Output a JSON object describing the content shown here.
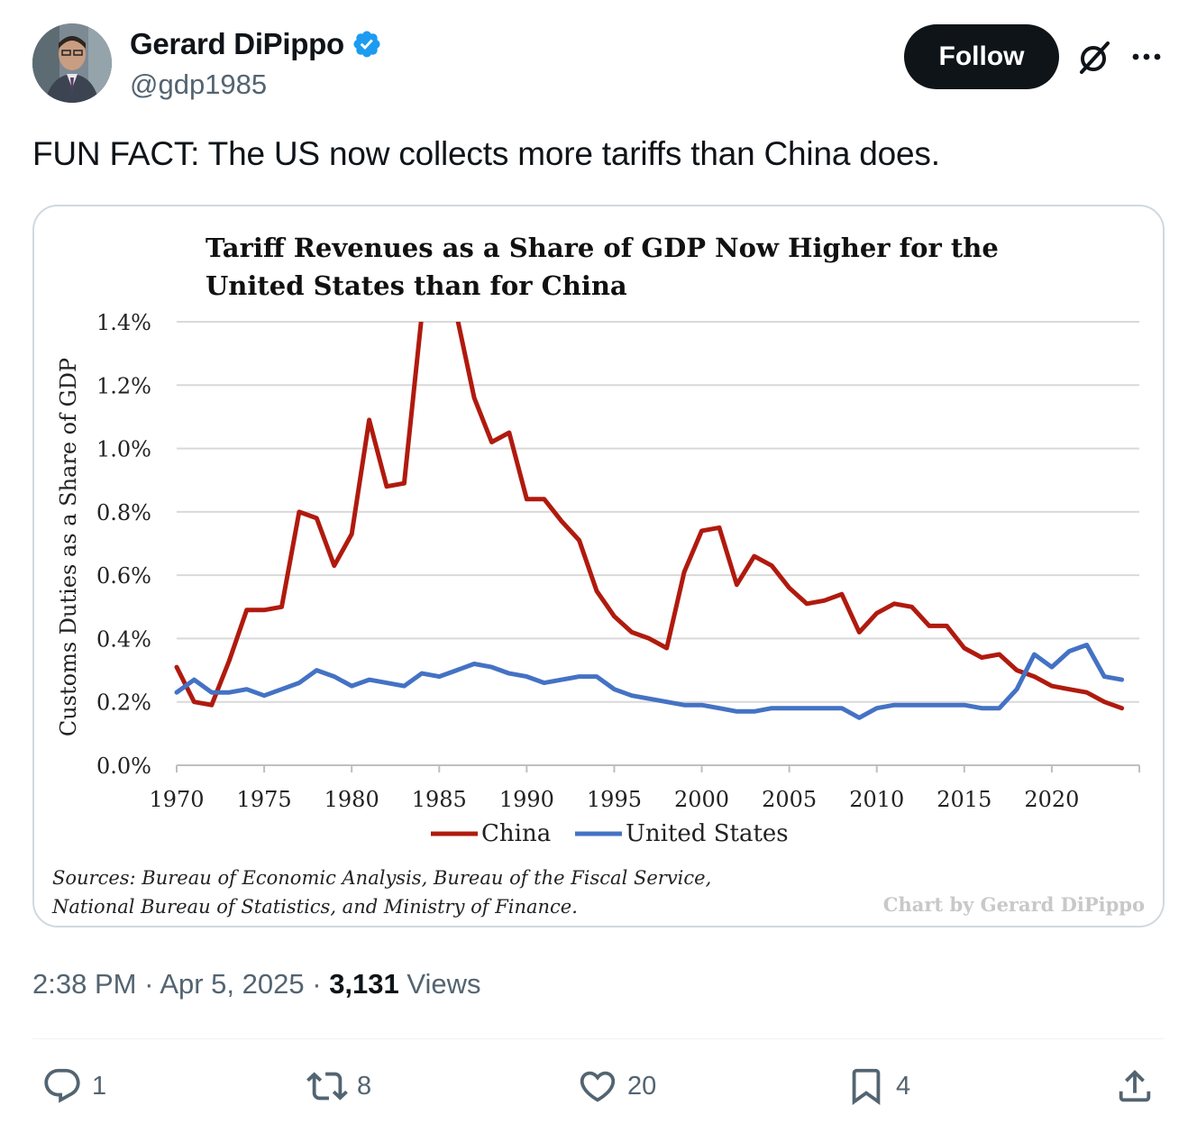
{
  "author": {
    "display_name": "Gerard DiPippo",
    "handle": "@gdp1985",
    "verified_icon": "verified-badge-icon"
  },
  "header": {
    "follow_label": "Follow",
    "grok_icon": "grok-icon",
    "more_icon": "more-options-icon"
  },
  "tweet": {
    "text": "FUN FACT: The US now collects more tariffs than China does."
  },
  "chart_data": {
    "type": "line",
    "title_line1": "Tariff Revenues as a Share of GDP Now Higher for the",
    "title_line2": "United States than for China",
    "ylabel": "Customs Duties as a Share of GDP",
    "xlabel": "",
    "ylim": [
      0,
      1.4
    ],
    "xlim": [
      1970,
      2025
    ],
    "yticks": [
      "0.0%",
      "0.2%",
      "0.4%",
      "0.6%",
      "0.8%",
      "1.0%",
      "1.2%",
      "1.4%"
    ],
    "xticks": [
      "1970",
      "1975",
      "1980",
      "1985",
      "1990",
      "1995",
      "2000",
      "2005",
      "2010",
      "2015",
      "2020"
    ],
    "grid": true,
    "legend_position": "bottom",
    "x": [
      1970,
      1971,
      1972,
      1973,
      1974,
      1975,
      1976,
      1977,
      1978,
      1979,
      1980,
      1981,
      1982,
      1983,
      1984,
      1985,
      1986,
      1987,
      1988,
      1989,
      1990,
      1991,
      1992,
      1993,
      1994,
      1995,
      1996,
      1997,
      1998,
      1999,
      2000,
      2001,
      2002,
      2003,
      2004,
      2005,
      2006,
      2007,
      2008,
      2009,
      2010,
      2011,
      2012,
      2013,
      2014,
      2015,
      2016,
      2017,
      2018,
      2019,
      2020,
      2021,
      2022,
      2023,
      2024
    ],
    "series": [
      {
        "name": "China",
        "color": "#b01a0e",
        "values": [
          0.31,
          0.2,
          0.19,
          0.33,
          0.49,
          0.49,
          0.5,
          0.8,
          0.78,
          0.63,
          0.73,
          1.09,
          0.88,
          0.89,
          1.42,
          1.6,
          1.42,
          1.16,
          1.02,
          1.05,
          0.84,
          0.84,
          0.77,
          0.71,
          0.55,
          0.47,
          0.42,
          0.4,
          0.37,
          0.61,
          0.74,
          0.75,
          0.57,
          0.66,
          0.63,
          0.56,
          0.51,
          0.52,
          0.54,
          0.42,
          0.48,
          0.51,
          0.5,
          0.44,
          0.44,
          0.37,
          0.34,
          0.35,
          0.3,
          0.28,
          0.25,
          0.24,
          0.23,
          0.2,
          0.18
        ]
      },
      {
        "name": "United States",
        "color": "#4472c4",
        "values": [
          0.23,
          0.27,
          0.23,
          0.23,
          0.24,
          0.22,
          0.24,
          0.26,
          0.3,
          0.28,
          0.25,
          0.27,
          0.26,
          0.25,
          0.29,
          0.28,
          0.3,
          0.32,
          0.31,
          0.29,
          0.28,
          0.26,
          0.27,
          0.28,
          0.28,
          0.24,
          0.22,
          0.21,
          0.2,
          0.19,
          0.19,
          0.18,
          0.17,
          0.17,
          0.18,
          0.18,
          0.18,
          0.18,
          0.18,
          0.15,
          0.18,
          0.19,
          0.19,
          0.19,
          0.19,
          0.19,
          0.18,
          0.18,
          0.24,
          0.35,
          0.31,
          0.36,
          0.38,
          0.28,
          0.27
        ]
      }
    ],
    "source_line1": "Sources: Bureau of Economic Analysis, Bureau of the Fiscal Service,",
    "source_line2": "National Bureau of Statistics, and Ministry of Finance.",
    "credit": "Chart by Gerard DiPippo"
  },
  "meta": {
    "time": "2:38 PM",
    "separator": "·",
    "date": "Apr 5, 2025",
    "views_count": "3,131",
    "views_label": "Views"
  },
  "actions": {
    "replies": "1",
    "reposts": "8",
    "likes": "20",
    "bookmarks": "4"
  }
}
